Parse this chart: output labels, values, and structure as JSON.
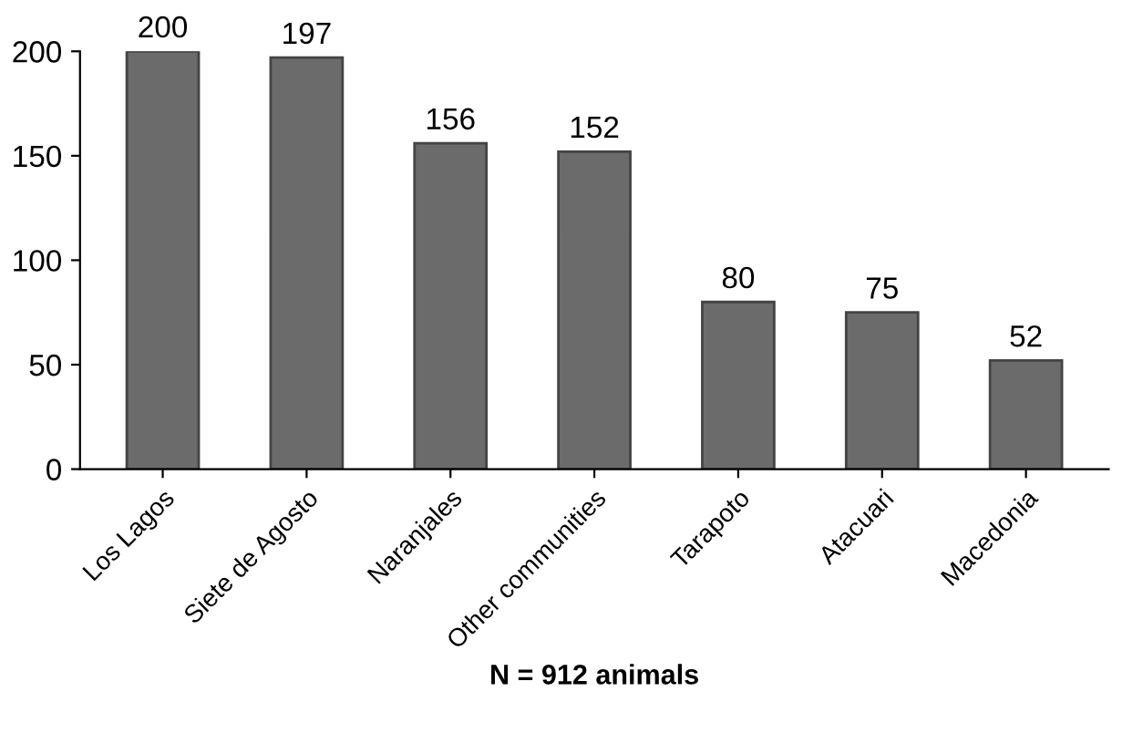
{
  "chart_data": {
    "type": "bar",
    "categories": [
      "Los Lagos",
      "Siete de Agosto",
      "Naranjales",
      "Other communities",
      "Tarapoto",
      "Atacuari",
      "Macedonia"
    ],
    "values": [
      200,
      197,
      156,
      152,
      80,
      75,
      52
    ],
    "color": "#6b6b6b",
    "xlabel": "N = 912 animals",
    "ylim": [
      0,
      200
    ],
    "yticks": [
      0,
      50,
      100,
      150,
      200
    ],
    "data_labels": true,
    "grid": false
  }
}
